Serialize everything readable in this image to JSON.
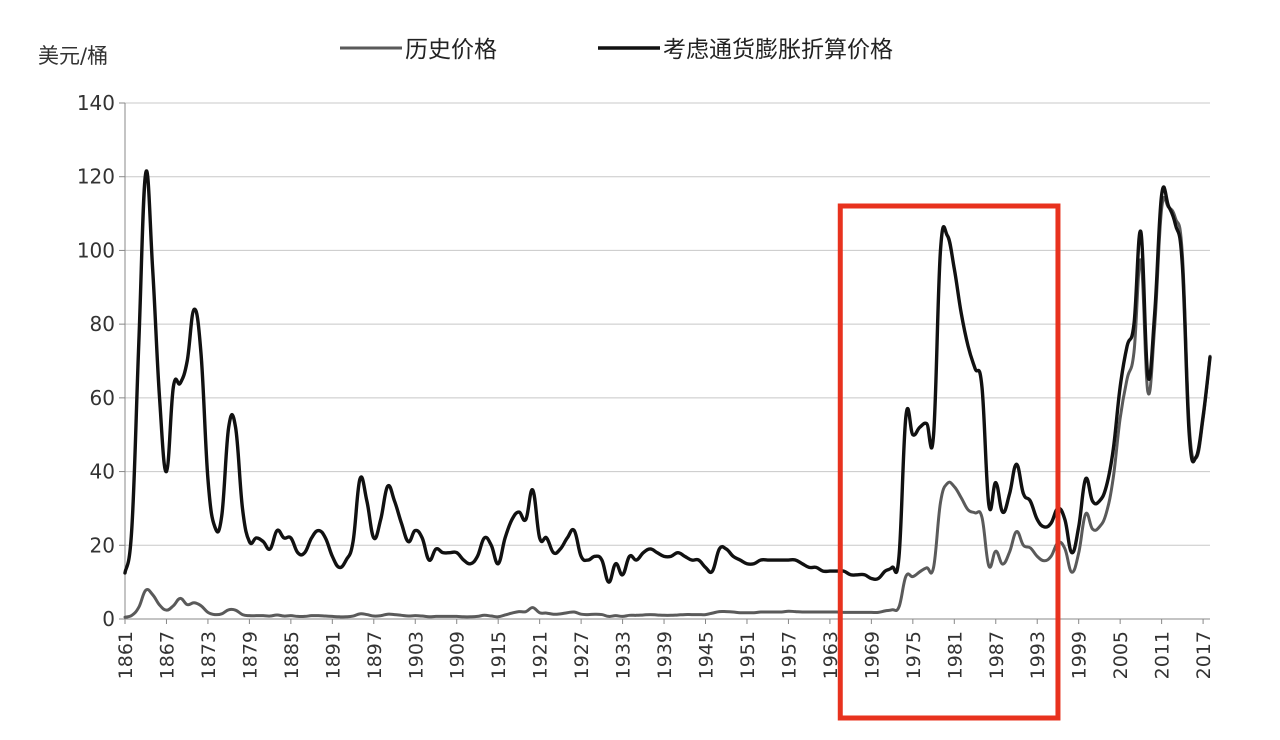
{
  "chart_data": {
    "type": "line",
    "ylabel": "美元/桶",
    "ylim": [
      0,
      140
    ],
    "yticks": [
      0,
      20,
      40,
      60,
      80,
      100,
      120,
      140
    ],
    "xlim": [
      1861,
      2018
    ],
    "xticks": [
      "1861",
      "1867",
      "1873",
      "1879",
      "1885",
      "1891",
      "1897",
      "1903",
      "1909",
      "1915",
      "1921",
      "1927",
      "1933",
      "1939",
      "1945",
      "1951",
      "1957",
      "1963",
      "1969",
      "1975",
      "1981",
      "1987",
      "1993",
      "1999",
      "2005",
      "2011",
      "2017"
    ],
    "grid": "horizontal",
    "legend_position": "top",
    "highlight": {
      "x_range": [
        1964.5,
        1996
      ],
      "color": "#e8321e"
    },
    "series": [
      {
        "name": "历史价格",
        "color": "#5a5a5a",
        "points": [
          [
            1861,
            0.5
          ],
          [
            1862,
            1.0
          ],
          [
            1863,
            3.2
          ],
          [
            1864,
            7.8
          ],
          [
            1865,
            6.6
          ],
          [
            1866,
            3.8
          ],
          [
            1867,
            2.4
          ],
          [
            1868,
            3.6
          ],
          [
            1869,
            5.6
          ],
          [
            1870,
            3.9
          ],
          [
            1871,
            4.4
          ],
          [
            1872,
            3.6
          ],
          [
            1873,
            1.8
          ],
          [
            1874,
            1.2
          ],
          [
            1875,
            1.4
          ],
          [
            1876,
            2.5
          ],
          [
            1877,
            2.4
          ],
          [
            1878,
            1.2
          ],
          [
            1879,
            0.9
          ],
          [
            1880,
            0.9
          ],
          [
            1881,
            0.9
          ],
          [
            1882,
            0.8
          ],
          [
            1883,
            1.1
          ],
          [
            1884,
            0.8
          ],
          [
            1885,
            0.9
          ],
          [
            1886,
            0.7
          ],
          [
            1887,
            0.7
          ],
          [
            1888,
            0.9
          ],
          [
            1889,
            0.9
          ],
          [
            1890,
            0.8
          ],
          [
            1891,
            0.7
          ],
          [
            1892,
            0.6
          ],
          [
            1893,
            0.6
          ],
          [
            1894,
            0.8
          ],
          [
            1895,
            1.4
          ],
          [
            1896,
            1.2
          ],
          [
            1897,
            0.8
          ],
          [
            1898,
            0.9
          ],
          [
            1899,
            1.3
          ],
          [
            1900,
            1.2
          ],
          [
            1901,
            1.0
          ],
          [
            1902,
            0.8
          ],
          [
            1903,
            0.9
          ],
          [
            1904,
            0.8
          ],
          [
            1905,
            0.6
          ],
          [
            1906,
            0.7
          ],
          [
            1907,
            0.7
          ],
          [
            1908,
            0.7
          ],
          [
            1909,
            0.7
          ],
          [
            1910,
            0.6
          ],
          [
            1911,
            0.6
          ],
          [
            1912,
            0.7
          ],
          [
            1913,
            1.0
          ],
          [
            1914,
            0.8
          ],
          [
            1915,
            0.6
          ],
          [
            1916,
            1.1
          ],
          [
            1917,
            1.6
          ],
          [
            1918,
            2.0
          ],
          [
            1919,
            2.0
          ],
          [
            1920,
            3.1
          ],
          [
            1921,
            1.7
          ],
          [
            1922,
            1.6
          ],
          [
            1923,
            1.3
          ],
          [
            1924,
            1.4
          ],
          [
            1925,
            1.7
          ],
          [
            1926,
            1.9
          ],
          [
            1927,
            1.3
          ],
          [
            1928,
            1.2
          ],
          [
            1929,
            1.3
          ],
          [
            1930,
            1.2
          ],
          [
            1931,
            0.7
          ],
          [
            1932,
            0.9
          ],
          [
            1933,
            0.7
          ],
          [
            1934,
            1.0
          ],
          [
            1935,
            1.0
          ],
          [
            1936,
            1.1
          ],
          [
            1937,
            1.2
          ],
          [
            1938,
            1.1
          ],
          [
            1939,
            1.0
          ],
          [
            1940,
            1.0
          ],
          [
            1941,
            1.1
          ],
          [
            1942,
            1.2
          ],
          [
            1943,
            1.2
          ],
          [
            1944,
            1.2
          ],
          [
            1945,
            1.2
          ],
          [
            1946,
            1.6
          ],
          [
            1947,
            2.0
          ],
          [
            1948,
            2.0
          ],
          [
            1949,
            1.9
          ],
          [
            1950,
            1.7
          ],
          [
            1951,
            1.7
          ],
          [
            1952,
            1.7
          ],
          [
            1953,
            1.9
          ],
          [
            1954,
            1.9
          ],
          [
            1955,
            1.9
          ],
          [
            1956,
            1.9
          ],
          [
            1957,
            2.1
          ],
          [
            1958,
            2.0
          ],
          [
            1959,
            1.9
          ],
          [
            1960,
            1.9
          ],
          [
            1961,
            1.9
          ],
          [
            1962,
            1.9
          ],
          [
            1963,
            1.9
          ],
          [
            1964,
            1.9
          ],
          [
            1965,
            1.8
          ],
          [
            1966,
            1.8
          ],
          [
            1967,
            1.8
          ],
          [
            1968,
            1.8
          ],
          [
            1969,
            1.8
          ],
          [
            1970,
            1.8
          ],
          [
            1971,
            2.2
          ],
          [
            1972,
            2.5
          ],
          [
            1973,
            3.3
          ],
          [
            1974,
            11.6
          ],
          [
            1975,
            11.5
          ],
          [
            1976,
            12.8
          ],
          [
            1977,
            13.9
          ],
          [
            1978,
            14.0
          ],
          [
            1979,
            31.6
          ],
          [
            1980,
            36.8
          ],
          [
            1981,
            35.9
          ],
          [
            1982,
            32.9
          ],
          [
            1983,
            29.6
          ],
          [
            1984,
            28.8
          ],
          [
            1985,
            27.6
          ],
          [
            1986,
            14.4
          ],
          [
            1987,
            18.4
          ],
          [
            1988,
            14.9
          ],
          [
            1989,
            18.2
          ],
          [
            1990,
            23.7
          ],
          [
            1991,
            20.0
          ],
          [
            1992,
            19.3
          ],
          [
            1993,
            17.0
          ],
          [
            1994,
            15.8
          ],
          [
            1995,
            17.0
          ],
          [
            1996,
            20.7
          ],
          [
            1997,
            19.1
          ],
          [
            1998,
            12.7
          ],
          [
            1999,
            17.9
          ],
          [
            2000,
            28.5
          ],
          [
            2001,
            24.4
          ],
          [
            2002,
            25.0
          ],
          [
            2003,
            28.8
          ],
          [
            2004,
            38.3
          ],
          [
            2005,
            54.5
          ],
          [
            2006,
            65.1
          ],
          [
            2007,
            72.4
          ],
          [
            2008,
            97.3
          ],
          [
            2009,
            61.7
          ],
          [
            2010,
            79.5
          ],
          [
            2011,
            111.3
          ],
          [
            2012,
            111.7
          ],
          [
            2013,
            108.7
          ],
          [
            2014,
            98.9
          ],
          [
            2015,
            52.4
          ],
          [
            2016,
            43.7
          ],
          [
            2017,
            54.2
          ],
          [
            2018,
            71.3
          ]
        ]
      },
      {
        "name": "考虑通货膨胀折算价格",
        "color": "#111111",
        "points": [
          [
            1861,
            12.5
          ],
          [
            1862,
            25
          ],
          [
            1863,
            75
          ],
          [
            1864,
            121
          ],
          [
            1865,
            95
          ],
          [
            1866,
            60
          ],
          [
            1867,
            40
          ],
          [
            1868,
            63
          ],
          [
            1869,
            64
          ],
          [
            1870,
            70
          ],
          [
            1871,
            84
          ],
          [
            1872,
            72
          ],
          [
            1873,
            38
          ],
          [
            1874,
            25
          ],
          [
            1875,
            28
          ],
          [
            1876,
            52
          ],
          [
            1877,
            52
          ],
          [
            1878,
            30
          ],
          [
            1879,
            21
          ],
          [
            1880,
            22
          ],
          [
            1881,
            21
          ],
          [
            1882,
            19
          ],
          [
            1883,
            24
          ],
          [
            1884,
            22
          ],
          [
            1885,
            22
          ],
          [
            1886,
            18
          ],
          [
            1887,
            18
          ],
          [
            1888,
            22
          ],
          [
            1889,
            24
          ],
          [
            1890,
            22
          ],
          [
            1891,
            17
          ],
          [
            1892,
            14
          ],
          [
            1893,
            16
          ],
          [
            1894,
            21
          ],
          [
            1895,
            38
          ],
          [
            1896,
            32
          ],
          [
            1897,
            22
          ],
          [
            1898,
            27
          ],
          [
            1899,
            36
          ],
          [
            1900,
            32
          ],
          [
            1901,
            26
          ],
          [
            1902,
            21
          ],
          [
            1903,
            24
          ],
          [
            1904,
            22
          ],
          [
            1905,
            16
          ],
          [
            1906,
            19
          ],
          [
            1907,
            18
          ],
          [
            1908,
            18
          ],
          [
            1909,
            18
          ],
          [
            1910,
            16
          ],
          [
            1911,
            15
          ],
          [
            1912,
            17
          ],
          [
            1913,
            22
          ],
          [
            1914,
            20
          ],
          [
            1915,
            15
          ],
          [
            1916,
            22
          ],
          [
            1917,
            27
          ],
          [
            1918,
            29
          ],
          [
            1919,
            27
          ],
          [
            1920,
            35
          ],
          [
            1921,
            22
          ],
          [
            1922,
            22
          ],
          [
            1923,
            18
          ],
          [
            1924,
            19
          ],
          [
            1925,
            22
          ],
          [
            1926,
            24
          ],
          [
            1927,
            17
          ],
          [
            1928,
            16
          ],
          [
            1929,
            17
          ],
          [
            1930,
            16
          ],
          [
            1931,
            10
          ],
          [
            1932,
            15
          ],
          [
            1933,
            12
          ],
          [
            1934,
            17
          ],
          [
            1935,
            16
          ],
          [
            1936,
            18
          ],
          [
            1937,
            19
          ],
          [
            1938,
            18
          ],
          [
            1939,
            17
          ],
          [
            1940,
            17
          ],
          [
            1941,
            18
          ],
          [
            1942,
            17
          ],
          [
            1943,
            16
          ],
          [
            1944,
            16
          ],
          [
            1945,
            14
          ],
          [
            1946,
            13
          ],
          [
            1947,
            19
          ],
          [
            1948,
            19
          ],
          [
            1949,
            17
          ],
          [
            1950,
            16
          ],
          [
            1951,
            15
          ],
          [
            1952,
            15
          ],
          [
            1953,
            16
          ],
          [
            1954,
            16
          ],
          [
            1955,
            16
          ],
          [
            1956,
            16
          ],
          [
            1957,
            16
          ],
          [
            1958,
            16
          ],
          [
            1959,
            15
          ],
          [
            1960,
            14
          ],
          [
            1961,
            14
          ],
          [
            1962,
            13
          ],
          [
            1963,
            13
          ],
          [
            1964,
            13
          ],
          [
            1965,
            13
          ],
          [
            1966,
            12
          ],
          [
            1967,
            12
          ],
          [
            1968,
            12
          ],
          [
            1969,
            11
          ],
          [
            1970,
            11
          ],
          [
            1971,
            13
          ],
          [
            1972,
            14
          ],
          [
            1973,
            17
          ],
          [
            1974,
            55
          ],
          [
            1975,
            50
          ],
          [
            1976,
            52
          ],
          [
            1977,
            53
          ],
          [
            1978,
            50
          ],
          [
            1979,
            100
          ],
          [
            1980,
            104
          ],
          [
            1981,
            95
          ],
          [
            1982,
            83
          ],
          [
            1983,
            74
          ],
          [
            1984,
            68
          ],
          [
            1985,
            63
          ],
          [
            1986,
            31
          ],
          [
            1987,
            37
          ],
          [
            1988,
            29
          ],
          [
            1989,
            34
          ],
          [
            1990,
            42
          ],
          [
            1991,
            34
          ],
          [
            1992,
            32
          ],
          [
            1993,
            27
          ],
          [
            1994,
            25
          ],
          [
            1995,
            26
          ],
          [
            1996,
            30
          ],
          [
            1997,
            27
          ],
          [
            1998,
            18
          ],
          [
            1999,
            25
          ],
          [
            2000,
            38
          ],
          [
            2001,
            32
          ],
          [
            2002,
            32
          ],
          [
            2003,
            36
          ],
          [
            2004,
            46
          ],
          [
            2005,
            63
          ],
          [
            2006,
            74
          ],
          [
            2007,
            80
          ],
          [
            2008,
            105
          ],
          [
            2009,
            66
          ],
          [
            2010,
            83
          ],
          [
            2011,
            115
          ],
          [
            2012,
            112
          ],
          [
            2013,
            107
          ],
          [
            2014,
            96
          ],
          [
            2015,
            50
          ],
          [
            2016,
            44
          ],
          [
            2017,
            55
          ],
          [
            2018,
            71
          ]
        ]
      }
    ]
  }
}
